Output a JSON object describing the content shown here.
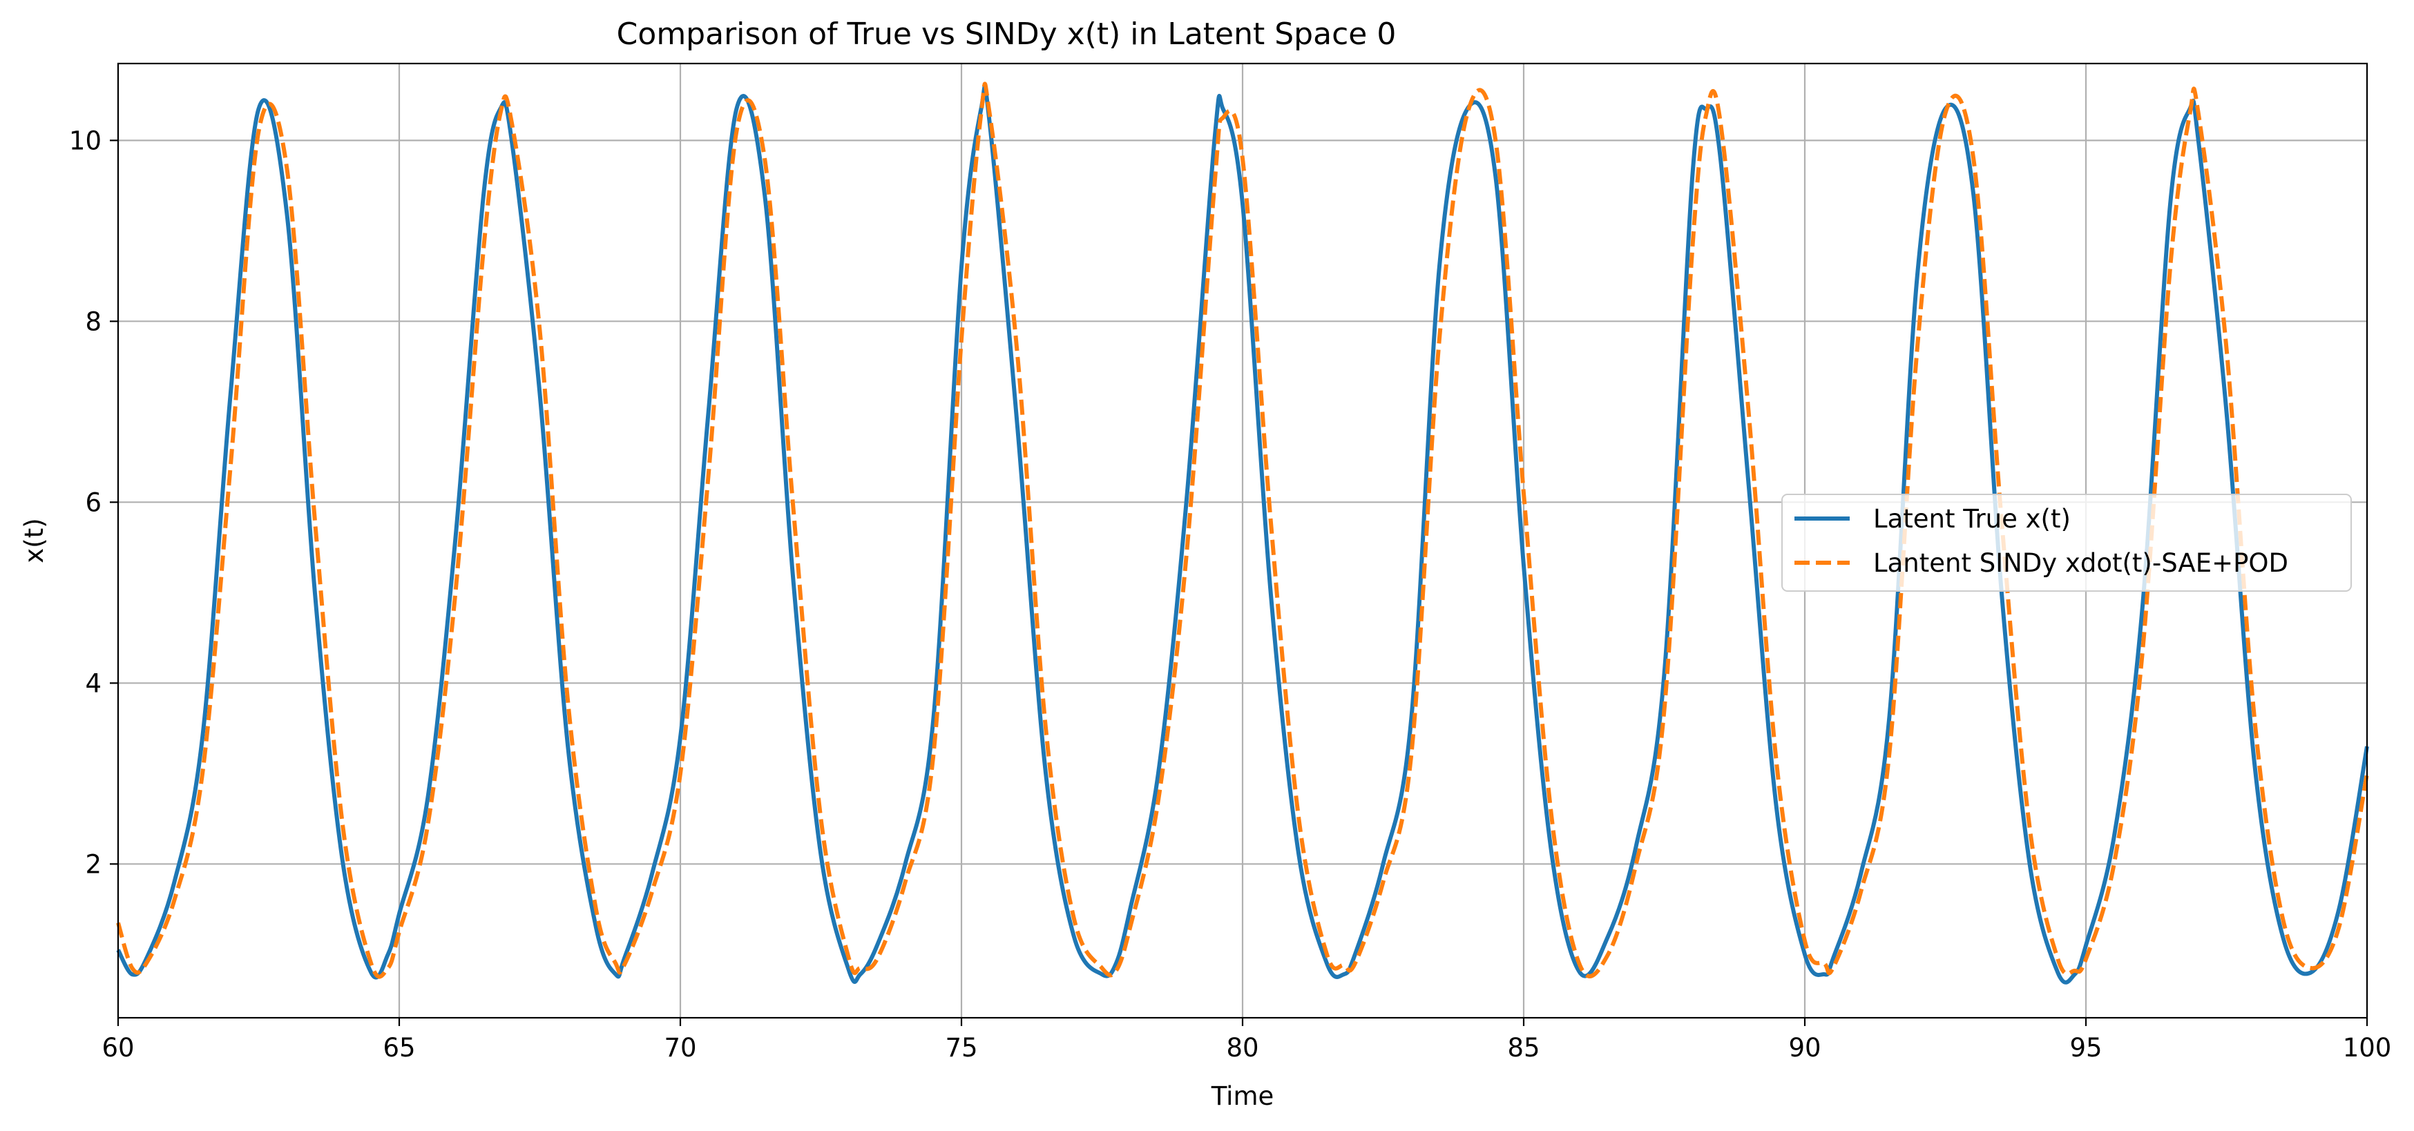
{
  "chart_data": {
    "type": "line",
    "title": "Comparison of True vs SINDy x(t) in Latent Space 0",
    "xlabel": "Time",
    "ylabel": "x(t)",
    "xlim": [
      60,
      100
    ],
    "ylim": [
      0.3,
      10.85
    ],
    "xticks": [
      "60",
      "65",
      "70",
      "75",
      "80",
      "85",
      "90",
      "95",
      "100"
    ],
    "yticks": [
      "2",
      "4",
      "6",
      "8",
      "10"
    ],
    "grid": true,
    "legend_position": "center-right",
    "series": [
      {
        "name": "Latent True x(t)",
        "style": "solid",
        "color": "#1f77b4",
        "x": [
          60.0,
          60.25,
          60.5,
          61.0,
          61.5,
          62.0,
          62.5,
          63.0,
          63.5,
          64.0,
          64.5,
          64.8,
          65.0,
          65.5,
          66.0,
          66.5,
          66.8,
          67.0,
          67.5,
          68.0,
          68.5,
          68.85,
          69.0,
          69.5,
          70.0,
          70.5,
          71.0,
          71.5,
          72.0,
          72.5,
          73.0,
          73.2,
          73.5,
          74.0,
          74.5,
          75.0,
          75.35,
          75.5,
          76.0,
          76.5,
          77.0,
          77.5,
          77.75,
          78.0,
          78.5,
          79.0,
          79.5,
          79.65,
          80.0,
          80.5,
          81.0,
          81.5,
          81.8,
          82.0,
          82.5,
          83.0,
          83.5,
          84.0,
          84.5,
          85.0,
          85.5,
          86.0,
          86.5,
          87.0,
          87.5,
          88.0,
          88.25,
          88.5,
          89.0,
          89.5,
          90.0,
          90.35,
          90.5,
          91.0,
          91.5,
          92.0,
          92.5,
          93.0,
          93.5,
          94.0,
          94.5,
          94.8,
          95.0,
          95.5,
          96.0,
          96.5,
          96.85,
          97.0,
          97.5,
          98.0,
          98.5,
          99.0,
          99.5,
          100.0
        ],
        "y": [
          1.05,
          0.78,
          0.95,
          1.8,
          3.4,
          7.2,
          10.35,
          9.2,
          5.0,
          2.0,
          0.8,
          1.0,
          1.45,
          2.7,
          5.6,
          9.4,
          10.35,
          10.0,
          7.2,
          3.3,
          1.3,
          0.78,
          0.95,
          1.9,
          3.4,
          7.0,
          10.35,
          9.4,
          5.2,
          2.1,
          0.82,
          0.78,
          1.1,
          2.0,
          3.6,
          8.6,
          10.35,
          10.2,
          6.8,
          3.0,
          1.2,
          0.78,
          0.9,
          1.5,
          3.0,
          6.0,
          10.0,
          10.35,
          9.3,
          5.0,
          2.1,
          0.9,
          0.78,
          1.0,
          2.0,
          3.6,
          8.6,
          10.35,
          9.6,
          5.3,
          2.1,
          0.8,
          1.2,
          2.2,
          4.1,
          9.6,
          10.35,
          9.8,
          6.2,
          2.6,
          1.0,
          0.78,
          0.95,
          1.9,
          3.6,
          8.5,
          10.35,
          9.4,
          5.0,
          2.0,
          0.8,
          0.78,
          1.1,
          2.3,
          4.8,
          9.3,
          10.35,
          10.0,
          7.0,
          3.1,
          1.2,
          0.8,
          1.5,
          3.3
        ]
      },
      {
        "name": "Lantent SINDy xdot(t)-SAE+POD",
        "style": "dashed",
        "color": "#ff7f0e",
        "x": [
          60.0,
          60.25,
          60.5,
          61.0,
          61.5,
          62.0,
          62.5,
          63.0,
          63.5,
          64.0,
          64.5,
          64.8,
          65.0,
          65.5,
          66.0,
          66.5,
          66.8,
          67.0,
          67.5,
          68.0,
          68.5,
          68.85,
          69.0,
          69.5,
          70.0,
          70.5,
          71.0,
          71.5,
          72.0,
          72.5,
          73.0,
          73.2,
          73.5,
          74.0,
          74.5,
          75.0,
          75.35,
          75.5,
          76.0,
          76.5,
          77.0,
          77.5,
          77.75,
          78.0,
          78.5,
          79.0,
          79.5,
          79.65,
          80.0,
          80.5,
          81.0,
          81.5,
          81.8,
          82.0,
          82.5,
          83.0,
          83.5,
          84.0,
          84.5,
          85.0,
          85.5,
          86.0,
          86.5,
          87.0,
          87.5,
          88.0,
          88.25,
          88.5,
          89.0,
          89.5,
          90.0,
          90.35,
          90.5,
          91.0,
          91.5,
          92.0,
          92.5,
          93.0,
          93.5,
          94.0,
          94.5,
          94.8,
          95.0,
          95.5,
          96.0,
          96.5,
          96.85,
          97.0,
          97.5,
          98.0,
          98.5,
          99.0,
          99.5,
          100.0
        ],
        "y": [
          1.35,
          0.85,
          0.9,
          1.6,
          3.0,
          6.4,
          10.1,
          9.7,
          5.8,
          2.4,
          0.9,
          0.85,
          1.25,
          2.4,
          5.0,
          8.8,
          10.3,
          10.2,
          7.9,
          3.8,
          1.5,
          0.9,
          0.88,
          1.7,
          3.0,
          6.3,
          10.1,
          9.8,
          6.0,
          2.5,
          0.95,
          0.85,
          0.95,
          1.8,
          3.2,
          7.8,
          10.3,
          10.3,
          7.6,
          3.5,
          1.4,
          0.85,
          0.82,
          1.3,
          2.7,
          5.4,
          9.5,
          10.25,
          9.8,
          5.8,
          2.5,
          1.0,
          0.88,
          0.9,
          1.8,
          3.2,
          7.8,
          10.3,
          10.0,
          6.1,
          2.5,
          0.88,
          1.0,
          2.0,
          3.7,
          8.8,
          10.3,
          10.2,
          7.0,
          3.1,
          1.15,
          0.9,
          0.85,
          1.7,
          3.2,
          7.7,
          10.3,
          9.8,
          5.8,
          2.4,
          0.95,
          0.82,
          0.95,
          2.0,
          4.3,
          8.6,
          10.3,
          10.3,
          7.7,
          3.6,
          1.4,
          0.85,
          1.3,
          3.0
        ]
      }
    ]
  }
}
